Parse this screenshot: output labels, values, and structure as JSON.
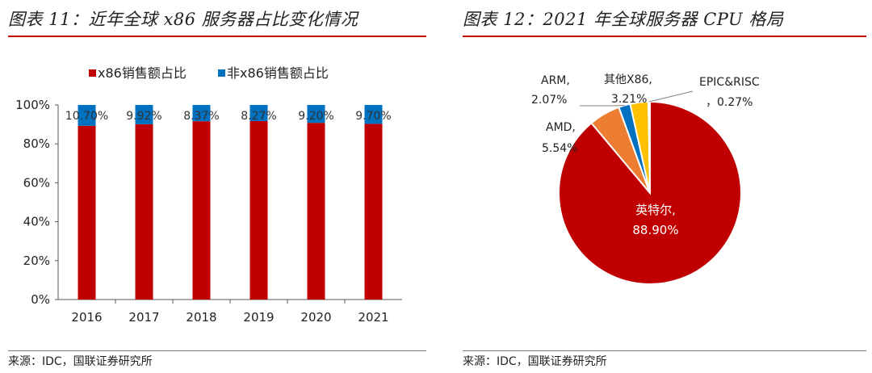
{
  "left": {
    "title": "图表 11：近年全球 x86 服务器占比变化情况",
    "source": "来源：IDC，国联证券研究所"
  },
  "right": {
    "title": "图表 12：2021 年全球服务器 CPU 格局",
    "source": "来源：IDC，国联证券研究所"
  },
  "colors": {
    "red": "#c00000",
    "blue": "#0070c0",
    "orange": "#ed7d31",
    "yellow": "#ffc000",
    "sky": "#5b9bd5"
  },
  "chart_data": [
    {
      "type": "bar",
      "stacked": true,
      "categories": [
        "2016",
        "2017",
        "2018",
        "2019",
        "2020",
        "2021"
      ],
      "series": [
        {
          "name": "x86销售额占比",
          "values": [
            89.3,
            90.08,
            91.63,
            91.73,
            90.8,
            90.3
          ]
        },
        {
          "name": "非x86销售额占比",
          "values": [
            10.7,
            9.92,
            8.37,
            8.27,
            9.2,
            9.7
          ]
        }
      ],
      "data_labels": [
        "10.70%",
        "9.92%",
        "8.37%",
        "8.27%",
        "9.20%",
        "9.70%"
      ],
      "y_ticks": [
        "0%",
        "20%",
        "40%",
        "60%",
        "80%",
        "100%"
      ],
      "ylim": [
        0,
        100
      ],
      "legend_position": "top"
    },
    {
      "type": "pie",
      "slices": [
        {
          "name": "英特尔",
          "value": 88.9,
          "label": "88.90%"
        },
        {
          "name": "AMD",
          "value": 5.54,
          "label": "5.54%"
        },
        {
          "name": "ARM",
          "value": 2.07,
          "label": "2.07%"
        },
        {
          "name": "其他X86",
          "value": 3.21,
          "label": "3.21%"
        },
        {
          "name": "EPIC&RISC",
          "value": 0.27,
          "label": "0.27%"
        }
      ]
    }
  ]
}
